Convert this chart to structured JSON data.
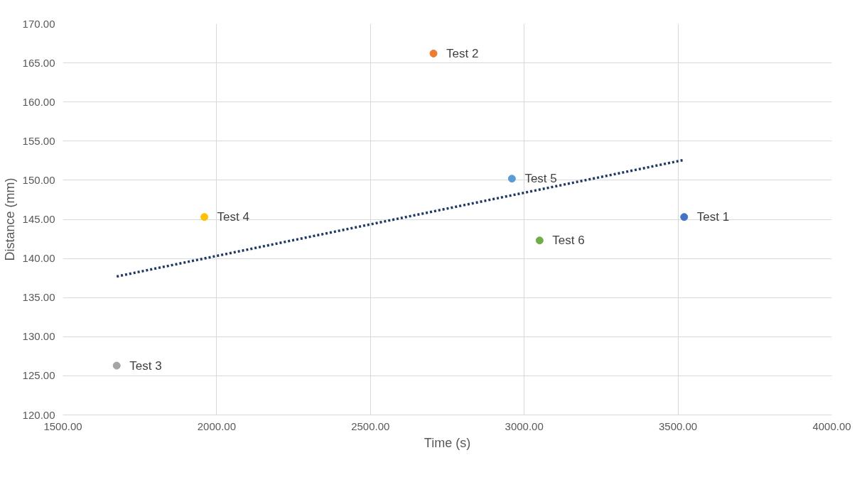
{
  "chart_data": {
    "type": "scatter",
    "xlabel": "Time (s)",
    "ylabel": "Distance (mm)",
    "xlim": [
      1500,
      4000
    ],
    "ylim": [
      120,
      170
    ],
    "xticks": [
      {
        "value": 1500,
        "label": "1500.00"
      },
      {
        "value": 2000,
        "label": "2000.00"
      },
      {
        "value": 2500,
        "label": "2500.00"
      },
      {
        "value": 3000,
        "label": "3000.00"
      },
      {
        "value": 3500,
        "label": "3500.00"
      },
      {
        "value": 4000,
        "label": "4000.00"
      }
    ],
    "yticks": [
      {
        "value": 120,
        "label": "120.00"
      },
      {
        "value": 125,
        "label": "125.00"
      },
      {
        "value": 130,
        "label": "130.00"
      },
      {
        "value": 135,
        "label": "135.00"
      },
      {
        "value": 140,
        "label": "140.00"
      },
      {
        "value": 145,
        "label": "145.00"
      },
      {
        "value": 150,
        "label": "150.00"
      },
      {
        "value": 155,
        "label": "155.00"
      },
      {
        "value": 160,
        "label": "160.00"
      },
      {
        "value": 165,
        "label": "165.00"
      },
      {
        "value": 170,
        "label": "170.00"
      }
    ],
    "grid": true,
    "marker": "circle",
    "series": [
      {
        "name": "Test 1",
        "color": "#4472c4",
        "x": [
          3520
        ],
        "values": [
          145.3
        ]
      },
      {
        "name": "Test 2",
        "color": "#ed7d31",
        "x": [
          2705
        ],
        "values": [
          166.2
        ]
      },
      {
        "name": "Test 3",
        "color": "#a5a5a5",
        "x": [
          1675
        ],
        "values": [
          126.3
        ]
      },
      {
        "name": "Test 4",
        "color": "#ffc000",
        "x": [
          1960
        ],
        "values": [
          145.3
        ]
      },
      {
        "name": "Test 5",
        "color": "#5b9bd5",
        "x": [
          2960
        ],
        "values": [
          150.2
        ]
      },
      {
        "name": "Test 6",
        "color": "#70ad47",
        "x": [
          3050
        ],
        "values": [
          142.3
        ]
      },
      {
        "type": "line",
        "color": "#1f3864",
        "line_style": "dotted",
        "marker": "none",
        "x": [
          1675,
          3520
        ],
        "values": [
          137.7,
          152.6
        ]
      }
    ]
  }
}
